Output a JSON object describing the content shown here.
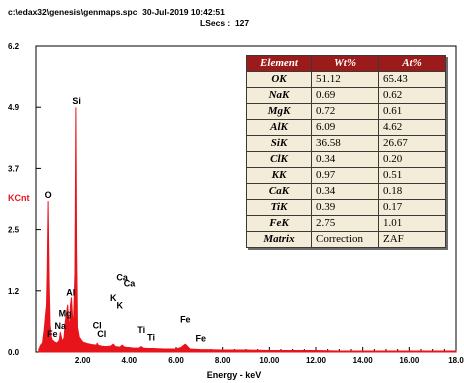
{
  "header": {
    "path_line": "c:\\edax32\\genesis\\genmaps.spc  30-Jul-2019 10:42:51",
    "lsecs_line": "LSecs :  127"
  },
  "chart_data": {
    "type": "line",
    "title": "",
    "xlabel": "Energy - keV",
    "ylabel": "KCnt",
    "xlim": [
      0,
      18
    ],
    "ylim": [
      0,
      6.2
    ],
    "x_ticks": [
      "2.00",
      "4.00",
      "6.00",
      "8.00",
      "10.00",
      "12.00",
      "14.00",
      "16.00",
      "18.0"
    ],
    "y_ticks": [
      "0.0",
      "1.2",
      "2.5",
      "3.7",
      "4.9",
      "6.2"
    ],
    "y_tick_values": [
      0,
      1.24,
      2.48,
      3.72,
      4.96,
      6.2
    ],
    "series": [
      {
        "color": "#e8141c",
        "x": [
          0.12,
          0.2,
          0.28,
          0.35,
          0.4,
          0.45,
          0.48,
          0.52,
          0.56,
          0.6,
          0.65,
          0.7,
          0.8,
          0.9,
          1.0,
          1.04,
          1.08,
          1.12,
          1.2,
          1.25,
          1.3,
          1.36,
          1.4,
          1.44,
          1.48,
          1.52,
          1.6,
          1.67,
          1.71,
          1.74,
          1.78,
          1.85,
          2.0,
          2.2,
          2.4,
          2.6,
          2.62,
          2.66,
          2.8,
          3.0,
          3.2,
          3.31,
          3.4,
          3.6,
          3.69,
          3.8,
          4.0,
          4.2,
          4.4,
          4.51,
          4.6,
          4.8,
          5.0,
          5.5,
          6.0,
          6.2,
          6.4,
          6.6,
          7.0,
          8.0,
          9.0,
          10.0,
          11.0,
          12.0,
          13.0,
          14.0,
          15.0,
          16.0,
          17.0,
          18.0
        ],
        "y": [
          0.05,
          0.14,
          0.18,
          0.45,
          0.7,
          0.95,
          1.6,
          3.05,
          1.4,
          0.55,
          0.3,
          0.24,
          0.2,
          0.18,
          0.24,
          0.4,
          0.32,
          0.22,
          0.28,
          0.6,
          0.75,
          0.95,
          0.62,
          0.5,
          0.95,
          1.1,
          0.45,
          1.6,
          4.95,
          2.1,
          0.5,
          0.3,
          0.2,
          0.17,
          0.15,
          0.14,
          0.18,
          0.14,
          0.12,
          0.11,
          0.12,
          0.16,
          0.11,
          0.1,
          0.14,
          0.1,
          0.09,
          0.08,
          0.08,
          0.11,
          0.08,
          0.07,
          0.07,
          0.06,
          0.06,
          0.09,
          0.16,
          0.06,
          0.05,
          0.04,
          0.04,
          0.03,
          0.03,
          0.03,
          0.02,
          0.02,
          0.02,
          0.02,
          0.02,
          0.02
        ]
      }
    ],
    "peak_labels": [
      {
        "label": "Si",
        "x": 1.74,
        "y": 5.02
      },
      {
        "label": "O",
        "x": 0.52,
        "y": 3.12
      },
      {
        "label": "Al",
        "x": 1.49,
        "y": 1.14
      },
      {
        "label": "Mg",
        "x": 1.25,
        "y": 0.72
      },
      {
        "label": "Na",
        "x": 1.04,
        "y": 0.47
      },
      {
        "label": "Fe",
        "x": 0.7,
        "y": 0.3
      },
      {
        "label": "Ca",
        "x": 3.69,
        "y": 1.45
      },
      {
        "label": "Ca",
        "x": 4.01,
        "y": 1.33
      },
      {
        "label": "K",
        "x": 3.31,
        "y": 1.03
      },
      {
        "label": "K",
        "x": 3.59,
        "y": 0.88
      },
      {
        "label": "Cl",
        "x": 2.62,
        "y": 0.48
      },
      {
        "label": "Cl",
        "x": 2.82,
        "y": 0.3
      },
      {
        "label": "Ti",
        "x": 4.51,
        "y": 0.38
      },
      {
        "label": "Ti",
        "x": 4.93,
        "y": 0.23
      },
      {
        "label": "Fe",
        "x": 6.4,
        "y": 0.6
      },
      {
        "label": "Fe",
        "x": 7.06,
        "y": 0.21
      }
    ]
  },
  "table": {
    "headers": [
      "Element",
      "Wt%",
      "At%"
    ],
    "rows": [
      [
        "OK",
        "51.12",
        "65.43"
      ],
      [
        "NaK",
        "0.69",
        "0.62"
      ],
      [
        "MgK",
        "0.72",
        "0.61"
      ],
      [
        "AlK",
        "6.09",
        "4.62"
      ],
      [
        "SiK",
        "36.58",
        "26.67"
      ],
      [
        "ClK",
        "0.34",
        "0.20"
      ],
      [
        "KK",
        "0.97",
        "0.51"
      ],
      [
        "CaK",
        "0.34",
        "0.18"
      ],
      [
        "TiK",
        "0.39",
        "0.17"
      ],
      [
        "FeK",
        "2.75",
        "1.01"
      ]
    ],
    "footer": [
      "Matrix",
      "Correction",
      "ZAF"
    ]
  }
}
